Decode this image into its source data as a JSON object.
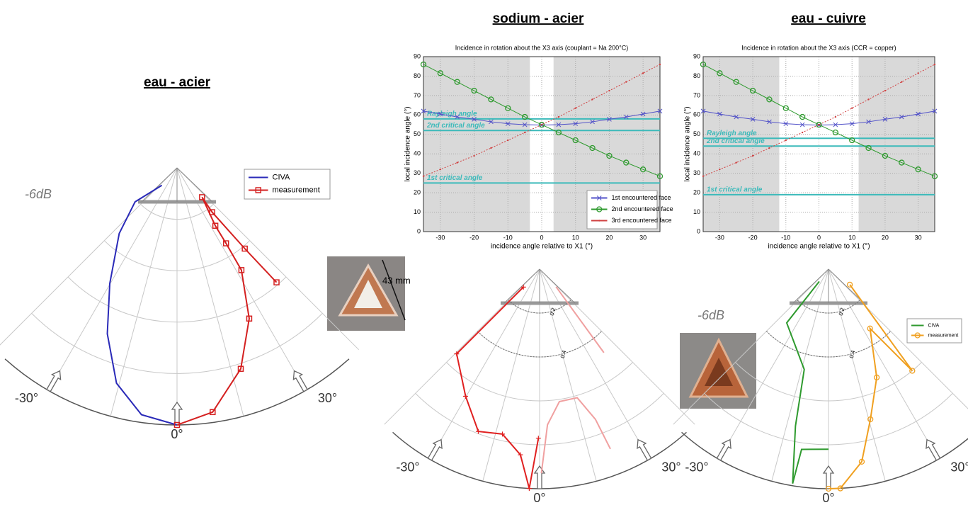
{
  "headings": [
    "eau - acier",
    "sodium - acier",
    "eau - cuivre"
  ],
  "photo_label": "43 mm",
  "chart_data": [
    {
      "type": "polar",
      "annotation": "-6dB",
      "legend": "upper right",
      "rlim": [
        0,
        1
      ],
      "thetaticks": [
        {
          "value": -30,
          "label": "-30°"
        },
        {
          "value": 0,
          "label": "0°"
        },
        {
          "value": 30,
          "label": "30°"
        }
      ],
      "series": [
        {
          "name": "CIVA",
          "color": "#2a2ab8",
          "marker": "none",
          "x": [
            -41,
            -51,
            -41.4,
            -30.2,
            -22.8,
            -15.7,
            -8.2,
            0
          ],
          "values": [
            0.09,
            0.21,
            0.34,
            0.52,
            0.7,
            0.87,
            0.97,
            1
          ]
        },
        {
          "name": "measurement",
          "color": "#d42020",
          "marker": "square",
          "x": [
            41,
            40,
            38.4,
            40.5,
            33.5,
            33,
            32.2,
            25.6,
            17.6,
            8.3,
            0
          ],
          "values": [
            0.59,
            0.41,
            0.22,
            0.15,
            0.27,
            0.35,
            0.47,
            0.65,
            0.82,
            0.96,
            1
          ]
        }
      ]
    },
    {
      "type": "line",
      "title": "Incidence in rotation about the X3 axis (couplant = Na 200°C)",
      "xlabel": "incidence angle relative to X1 (°)",
      "ylabel": "local incidence angle (°)",
      "xlim": [
        -35,
        35
      ],
      "ylim": [
        0,
        90
      ],
      "xticks": [
        -30,
        -20,
        -10,
        0,
        10,
        20,
        30
      ],
      "yticks": [
        0,
        10,
        20,
        30,
        40,
        50,
        60,
        70,
        80,
        90
      ],
      "grid": true,
      "legend": "lower right",
      "shade_outside": [
        -3.5,
        3.5
      ],
      "hlines": [
        {
          "label": "Rayleigh angle",
          "value": 58
        },
        {
          "label": "2nd critical angle",
          "value": 52
        },
        {
          "label": "1st critical angle",
          "value": 25
        }
      ],
      "hline_color": "#3cbaba",
      "x": [
        -35,
        -30,
        -25,
        -20,
        -15,
        -10,
        -5,
        0,
        5,
        10,
        15,
        20,
        25,
        30,
        35
      ],
      "series": [
        {
          "name": "1st encountered face",
          "color": "#5050c8",
          "marker": "x",
          "values": [
            62,
            60.5,
            59,
            57.8,
            56.5,
            55.5,
            55,
            54.8,
            55,
            55.5,
            56.5,
            57.8,
            59,
            60.5,
            62
          ]
        },
        {
          "name": "2nd encountered face",
          "color": "#2e9a2e",
          "marker": "circle",
          "values": [
            86,
            81.5,
            77,
            72.5,
            68,
            63.5,
            59,
            55,
            51,
            47,
            43,
            39,
            35.5,
            32,
            28.5
          ]
        },
        {
          "name": "3rd encountered face",
          "color": "#d04040",
          "marker": "dot",
          "values": [
            28.5,
            32,
            35.5,
            39,
            43,
            47,
            51,
            55,
            59,
            63.5,
            68,
            72.5,
            77,
            81.5,
            86
          ]
        }
      ]
    },
    {
      "type": "polar",
      "rlim": [
        0,
        1
      ],
      "rticks": [
        0.2,
        0.4
      ],
      "thetaticks": [
        {
          "value": -30,
          "label": "-30°"
        },
        {
          "value": 0,
          "label": "0°"
        },
        {
          "value": 30,
          "label": "30°"
        }
      ],
      "series": [
        {
          "color": "#e02020",
          "marker": "plus",
          "x": [
            -42,
            -44.4,
            -30.2,
            -20.7,
            -12.7,
            -5.9,
            -2.7,
            -0.4
          ],
          "values": [
            0.11,
            0.54,
            0.67,
            0.79,
            0.77,
            0.85,
            1.0,
            0.77
          ]
        },
        {
          "color": "#f0a0a0",
          "marker": "none",
          "x": [
            43,
            37.6,
            null,
            0.5,
            2.9,
            8.5,
            16.3,
            20.4,
            21.5
          ],
          "values": [
            0.11,
            0.48,
            null,
            0.93,
            0.71,
            0.61,
            0.61,
            0.73,
            0.88
          ]
        }
      ]
    },
    {
      "type": "line",
      "title": "Incidence in rotation about the X3 axis (CCR = copper)",
      "xlabel": "incidence angle  relative to X1 (°)",
      "ylabel": "local incidence angle (°)",
      "xlim": [
        -35,
        35
      ],
      "ylim": [
        0,
        90
      ],
      "xticks": [
        -30,
        -20,
        -10,
        0,
        10,
        20,
        30
      ],
      "yticks": [
        0,
        10,
        20,
        30,
        40,
        50,
        60,
        70,
        80,
        90
      ],
      "grid": true,
      "shade_outside": [
        -12,
        12
      ],
      "hlines": [
        {
          "label": "Rayleigh angle",
          "value": 48
        },
        {
          "label": "2nd critical angle",
          "value": 44
        },
        {
          "label": "1st critical angle",
          "value": 19
        }
      ],
      "hline_color": "#3cbaba",
      "x": [
        -35,
        -30,
        -25,
        -20,
        -15,
        -10,
        -5,
        0,
        5,
        10,
        15,
        20,
        25,
        30,
        35
      ],
      "series": [
        {
          "color": "#5050c8",
          "marker": "x",
          "values": [
            62,
            60.5,
            59,
            57.8,
            56.5,
            55.5,
            55,
            54.8,
            55,
            55.5,
            56.5,
            57.8,
            59,
            60.5,
            62
          ]
        },
        {
          "color": "#2e9a2e",
          "marker": "circle",
          "values": [
            86,
            81.5,
            77,
            72.5,
            68,
            63.5,
            59,
            55,
            51,
            47,
            43,
            39,
            35.5,
            32,
            28.5
          ]
        },
        {
          "color": "#d04040",
          "marker": "dot",
          "values": [
            28.5,
            32,
            35.5,
            39,
            43,
            47,
            51,
            55,
            59,
            63.5,
            68,
            72.5,
            77,
            81.5,
            86
          ]
        }
      ]
    },
    {
      "type": "polar",
      "annotation": "-6dB",
      "legend": "upper right",
      "rlim": [
        0,
        1
      ],
      "rticks": [
        0.2,
        0.4
      ],
      "thetaticks": [
        {
          "value": -30,
          "label": "-30°"
        },
        {
          "value": 0,
          "label": "0°"
        },
        {
          "value": 30,
          "label": "30°"
        }
      ],
      "series": [
        {
          "name": "CIVA",
          "color": "#2e9a2e",
          "marker": "none",
          "x": [
            -36.9,
            -37.9,
            -13.6,
            -11.9,
            -9.5,
            -8.5,
            0
          ],
          "values": [
            0.07,
            0.31,
            0.47,
            0.73,
            0.99,
            0.83,
            0.82
          ]
        },
        {
          "name": "measurement",
          "color": "#f0a020",
          "marker": "circle",
          "x": [
            54,
            39.5,
            35,
            24,
            15.6,
            9.8,
            3.1,
            0
          ],
          "values": [
            0.12,
            0.6,
            0.33,
            0.54,
            0.71,
            0.89,
            1,
            1
          ]
        }
      ]
    }
  ]
}
